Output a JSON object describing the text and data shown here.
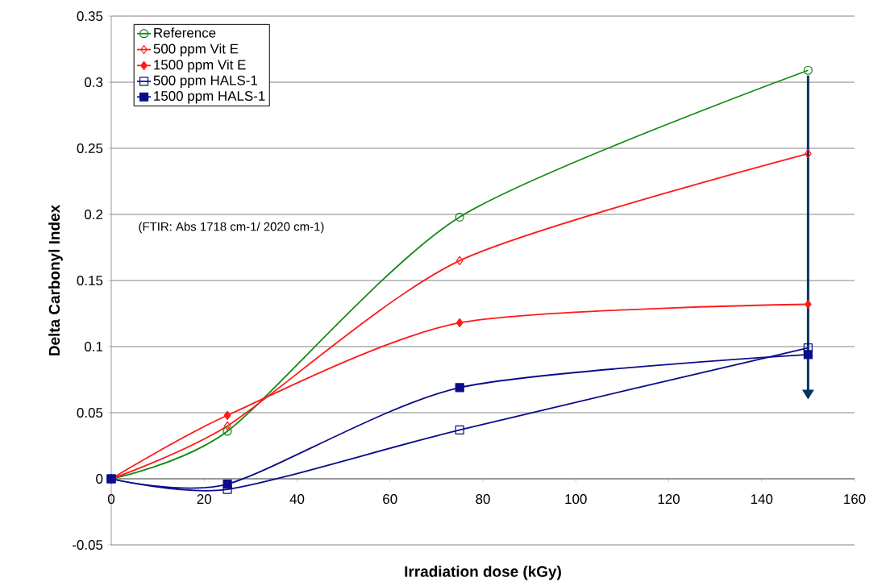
{
  "chart_data": {
    "type": "line",
    "xlabel": "Irradiation dose (kGy)",
    "ylabel": "Delta Carbonyl Index",
    "annotations": [
      "(FTIR: Abs 1718 cm-1/ 2020 cm-1)"
    ],
    "x": [
      0,
      25,
      75,
      150
    ],
    "series": [
      {
        "name": "Reference",
        "color": "#138a13",
        "marker": "circle_open",
        "values": [
          0,
          0.036,
          0.198,
          0.309
        ]
      },
      {
        "name": "500 ppm Vit E",
        "color": "#ff1a1a",
        "marker": "diamond_open",
        "values": [
          0,
          0.04,
          0.165,
          0.246
        ]
      },
      {
        "name": "1500 ppm Vit E",
        "color": "#ff1a1a",
        "marker": "diamond",
        "values": [
          0,
          0.048,
          0.118,
          0.132
        ]
      },
      {
        "name": "500 ppm HALS-1",
        "color": "#0c0c8a",
        "marker": "square_open",
        "values": [
          0,
          -0.008,
          0.037,
          0.099
        ]
      },
      {
        "name": "1500 ppm HALS-1",
        "color": "#0c0c8a",
        "marker": "square",
        "values": [
          0,
          -0.004,
          0.069,
          0.094
        ]
      }
    ],
    "xlim": [
      0,
      160
    ],
    "xticks": [
      0,
      20,
      40,
      60,
      80,
      100,
      120,
      140,
      160
    ],
    "ylim": [
      -0.05,
      0.35
    ],
    "yticks": [
      -0.05,
      0,
      0.05,
      0.1,
      0.15,
      0.2,
      0.25,
      0.3,
      0.35
    ],
    "grid": "y",
    "legend": "top left",
    "line_style": "solid"
  }
}
